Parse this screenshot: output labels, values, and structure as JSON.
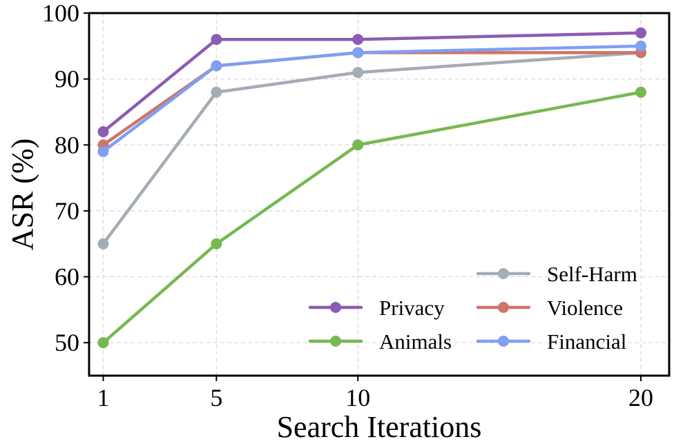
{
  "chart_data": {
    "type": "line",
    "title": "",
    "xlabel": "Search Iterations",
    "ylabel": "ASR (%)",
    "x": [
      1,
      5,
      10,
      20
    ],
    "x_tick_labels": [
      "1",
      "5",
      "10",
      "20"
    ],
    "y_ticks": [
      50,
      60,
      70,
      80,
      90,
      100
    ],
    "y_tick_labels": [
      "50",
      "60",
      "70",
      "80",
      "90",
      "100"
    ],
    "ylim": [
      45,
      100
    ],
    "xlim": [
      0.5,
      21
    ],
    "grid": true,
    "legend_position": "bottom-right",
    "series": [
      {
        "name": "Privacy",
        "color": "#8b5cb4",
        "values": [
          82,
          96,
          96,
          97
        ]
      },
      {
        "name": "Animals",
        "color": "#76b852",
        "values": [
          50,
          65,
          80,
          88
        ]
      },
      {
        "name": "Self-Harm",
        "color": "#a4acb6",
        "values": [
          65,
          88,
          91,
          94
        ]
      },
      {
        "name": "Violence",
        "color": "#cd7567",
        "values": [
          80,
          92,
          94,
          94
        ]
      },
      {
        "name": "Financial",
        "color": "#7f9ff2",
        "values": [
          79,
          92,
          94,
          95
        ]
      }
    ],
    "draw_order": [
      "Privacy",
      "Animals",
      "Self-Harm",
      "Violence",
      "Financial"
    ]
  }
}
